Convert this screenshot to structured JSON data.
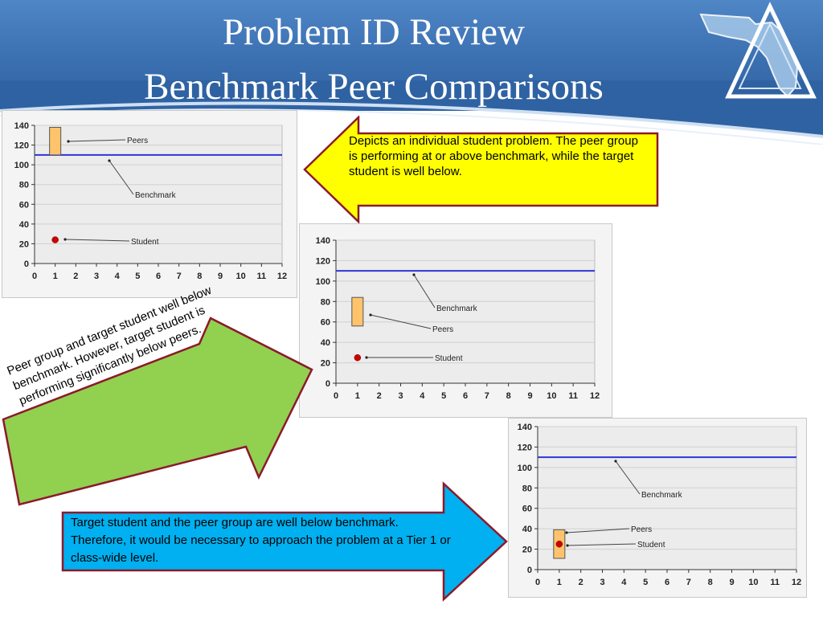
{
  "slide": {
    "title_line1": "Problem ID Review",
    "title_line2": "Benchmark Peer Comparisons"
  },
  "callouts": {
    "top": "Depicts an individual student problem.  The peer group is performing at or above benchmark, while the target student is well below.",
    "middle": "Peer group and target student well below benchmark.  However, target student is performing significantly below peers.",
    "bottom": "Target student and the peer group are well below benchmark. Therefore, it would be necessary to approach the problem at a Tier 1 or class-wide level."
  },
  "colors": {
    "header_blue": "#3a6fb0",
    "callout_yellow": "#ffff00",
    "callout_green": "#92d050",
    "callout_blue": "#00b0f0",
    "callout_border": "#8b1a2b",
    "benchmark_line": "#2f35d6",
    "peer_box": "#ffc46b",
    "student_dot": "#cc0000"
  },
  "chart_data": [
    {
      "type": "scatter",
      "xlim": [
        0,
        12
      ],
      "ylim": [
        0,
        140
      ],
      "x_ticks": [
        "0",
        "1",
        "2",
        "3",
        "4",
        "5",
        "6",
        "7",
        "8",
        "9",
        "10",
        "11",
        "12"
      ],
      "y_ticks": [
        "0",
        "20",
        "40",
        "60",
        "80",
        "100",
        "120",
        "140"
      ],
      "benchmark": 110,
      "peers": {
        "x": 1,
        "low": 110,
        "high": 138
      },
      "student": {
        "x": 1,
        "y": 24
      },
      "annotations": {
        "peers": "Peers",
        "benchmark": "Benchmark",
        "student": "Student"
      },
      "grid": true
    },
    {
      "type": "scatter",
      "xlim": [
        0,
        12
      ],
      "ylim": [
        0,
        140
      ],
      "x_ticks": [
        "0",
        "1",
        "2",
        "3",
        "4",
        "5",
        "6",
        "7",
        "8",
        "9",
        "10",
        "11",
        "12"
      ],
      "y_ticks": [
        "0",
        "20",
        "40",
        "60",
        "80",
        "100",
        "120",
        "140"
      ],
      "benchmark": 110,
      "peers": {
        "x": 1,
        "low": 56,
        "high": 84
      },
      "student": {
        "x": 1,
        "y": 25
      },
      "annotations": {
        "benchmark": "Benchmark",
        "peers": "Peers",
        "student": "Student"
      },
      "grid": true
    },
    {
      "type": "scatter",
      "xlim": [
        0,
        12
      ],
      "ylim": [
        0,
        140
      ],
      "x_ticks": [
        "0",
        "1",
        "2",
        "3",
        "4",
        "5",
        "6",
        "7",
        "8",
        "9",
        "10",
        "11",
        "12"
      ],
      "y_ticks": [
        "0",
        "20",
        "40",
        "60",
        "80",
        "100",
        "120",
        "140"
      ],
      "benchmark": 110,
      "peers": {
        "x": 1,
        "low": 11,
        "high": 39
      },
      "student": {
        "x": 1,
        "y": 25
      },
      "annotations": {
        "benchmark": "Benchmark",
        "peers": "Peers",
        "student": "Student"
      },
      "grid": true
    }
  ]
}
